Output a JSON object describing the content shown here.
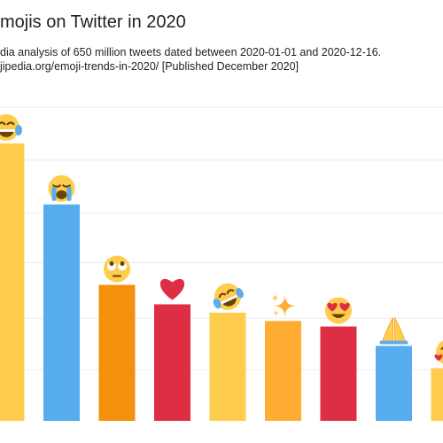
{
  "header": {
    "title": "mojis on Twitter in 2020",
    "subtitle_line1": "dia analysis of 650 million tweets dated between 2020-01-01 and 2020-12-16.",
    "subtitle_line2": "jipedia.org/emoji-trends-in-2020/ [Published December 2020]"
  },
  "chart_data": {
    "type": "bar",
    "title": "mojis on Twitter in 2020",
    "categories": [
      "face-with-tears-of-joy",
      "loudly-crying-face",
      "face-with-rolling-eyes",
      "red-heart",
      "rolling-on-the-floor-laughing",
      "sparkles",
      "smiling-face-with-heart-eyes",
      "folded-hands",
      "smiling-face-with-hearts"
    ],
    "values": [
      100,
      78,
      49,
      42,
      39,
      36,
      34,
      27,
      19
    ],
    "bar_colors": [
      "#FFCC4D",
      "#55ACEE",
      "#F4900C",
      "#DD2E44",
      "#FFCC4D",
      "#FFAC33",
      "#DD2E44",
      "#55ACEE",
      "#FFCC4D"
    ],
    "icons": [
      "tears-of-joy-icon",
      "loudly-crying-icon",
      "rolling-eyes-icon",
      "red-heart-icon",
      "rofl-icon",
      "sparkles-icon",
      "heart-eyes-icon",
      "folded-hands-icon",
      "smiling-hearts-icon"
    ],
    "ylim": [
      0,
      114
    ],
    "grid": true,
    "legend": "none",
    "xlabel": "",
    "ylabel": ""
  }
}
